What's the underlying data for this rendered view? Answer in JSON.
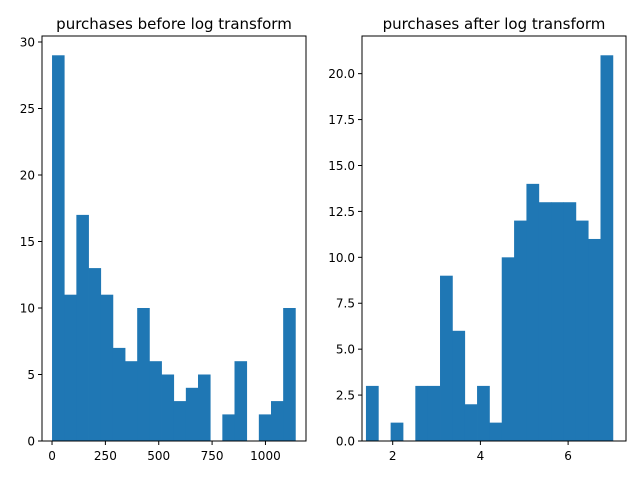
{
  "chart_data": [
    {
      "type": "bar",
      "title": "purchases before log transform",
      "xlabel": "",
      "ylabel": "",
      "xlim": [
        -47,
        1190
      ],
      "ylim": [
        0,
        30.45
      ],
      "xticks": [
        0,
        250,
        500,
        750,
        1000
      ],
      "yticks": [
        0,
        5,
        10,
        15,
        20,
        25,
        30
      ],
      "bin_edges": [
        0,
        57,
        114,
        171,
        228,
        285,
        342,
        399,
        456,
        513,
        570,
        627,
        684,
        741,
        798,
        855,
        912,
        969,
        1026,
        1083,
        1140
      ],
      "values": [
        29,
        11,
        17,
        13,
        11,
        7,
        6,
        10,
        6,
        5,
        3,
        4,
        5,
        0,
        2,
        6,
        0,
        2,
        3,
        10
      ],
      "color": "#1f77b4"
    },
    {
      "type": "bar",
      "title": "purchases after log transform",
      "xlabel": "",
      "ylabel": "",
      "xlim": [
        1.3,
        7.32
      ],
      "ylim": [
        0,
        22.05
      ],
      "xticks": [
        2,
        4,
        6
      ],
      "yticks": [
        0.0,
        2.5,
        5.0,
        7.5,
        10.0,
        12.5,
        15.0,
        17.5,
        20.0
      ],
      "bin_edges": [
        1.39,
        1.6715,
        1.953,
        2.2345,
        2.516,
        2.7975,
        3.079,
        3.3605,
        3.642,
        3.9235,
        4.205,
        4.4865,
        4.768,
        5.0495,
        5.331,
        5.6125,
        5.894,
        6.1755,
        6.457,
        6.7385,
        7.02
      ],
      "values": [
        3,
        0,
        1,
        0,
        3,
        3,
        9,
        6,
        2,
        3,
        1,
        10,
        12,
        14,
        13,
        13,
        13,
        12,
        11,
        21
      ],
      "color": "#1f77b4"
    }
  ]
}
